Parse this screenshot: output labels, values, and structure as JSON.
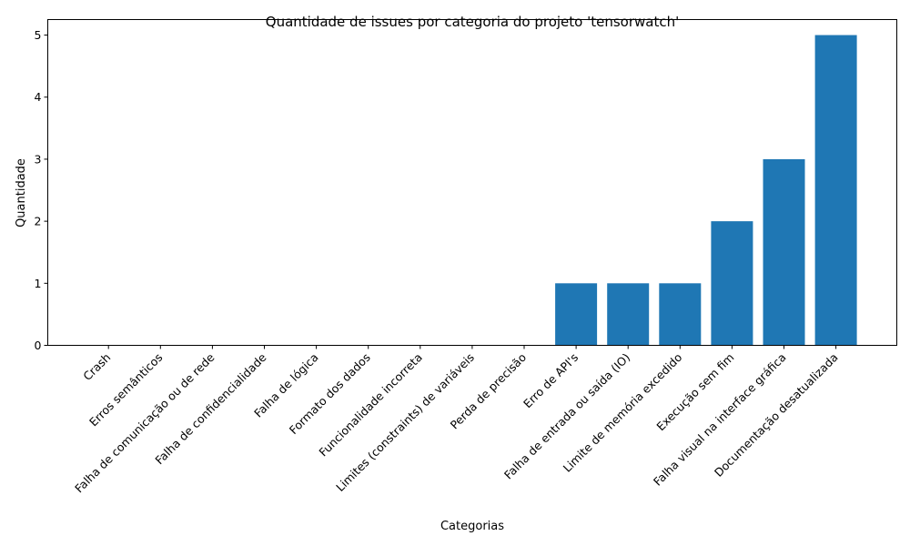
{
  "chart_data": {
    "type": "bar",
    "title": "Quantidade de issues por categoria do projeto 'tensorwatch'",
    "xlabel": "Categorias",
    "ylabel": "Quantidade",
    "categories": [
      "Crash",
      "Erros semânticos",
      "Falha de comunicação ou de rede",
      "Falha de confidencialidade",
      "Falha de lógica",
      "Formato dos dados",
      "Funcionalidade incorreta",
      "Limites (constraints) de variáveis",
      "Perda de precisão",
      "Erro de API's",
      "Falha de entrada ou saída (IO)",
      "Limite de memória excedido",
      "Execução sem fim",
      "Falha visual na interface gráfica",
      "Documentação desatualizada"
    ],
    "values": [
      0,
      0,
      0,
      0,
      0,
      0,
      0,
      0,
      0,
      1,
      1,
      1,
      2,
      3,
      5
    ],
    "yticks": [
      "0",
      "1",
      "2",
      "3",
      "4",
      "5"
    ],
    "ylim": [
      0,
      5.25
    ],
    "grid": false,
    "bar_color": "#1f77b4"
  }
}
